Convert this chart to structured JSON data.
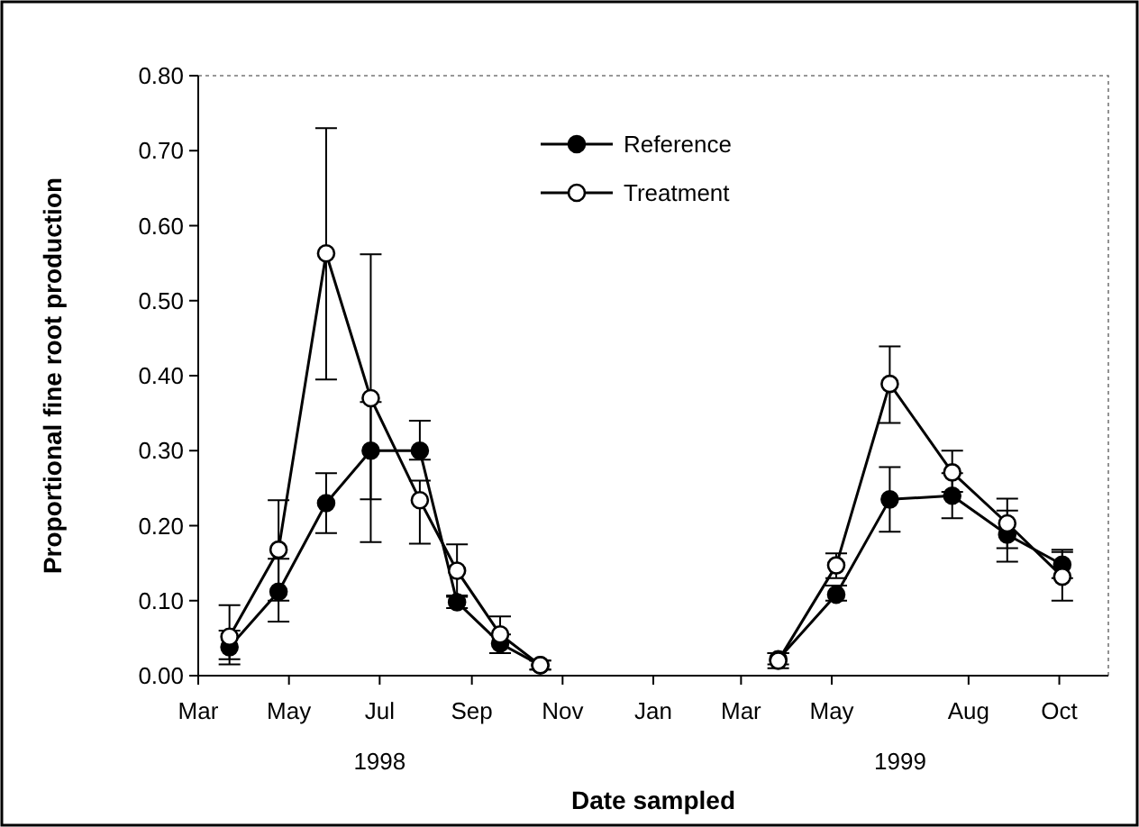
{
  "chart_data": {
    "type": "line",
    "xlabel": "Date sampled",
    "ylabel": "Proportional fine root production",
    "xlim": [
      "1998-03-01",
      "1999-11-03"
    ],
    "ylim": [
      0,
      0.8
    ],
    "xticks": [
      {
        "value": "1998-03-01",
        "label": "Mar"
      },
      {
        "value": "1998-05-01",
        "label": "May"
      },
      {
        "value": "1998-07-01",
        "label": "Jul"
      },
      {
        "value": "1998-09-01",
        "label": "Sep"
      },
      {
        "value": "1998-11-01",
        "label": "Nov"
      },
      {
        "value": "1999-01-01",
        "label": "Jan"
      },
      {
        "value": "1999-03-01",
        "label": "Mar"
      },
      {
        "value": "1999-05-01",
        "label": "May"
      },
      {
        "value": "1999-08-01",
        "label": "Aug"
      },
      {
        "value": "1999-10-01",
        "label": "Oct"
      }
    ],
    "yticks": [
      {
        "value": 0,
        "label": "0.00"
      },
      {
        "value": 0.1,
        "label": "0.10"
      },
      {
        "value": 0.2,
        "label": "0.20"
      },
      {
        "value": 0.3,
        "label": "0.30"
      },
      {
        "value": 0.4,
        "label": "0.40"
      },
      {
        "value": 0.5,
        "label": "0.50"
      },
      {
        "value": 0.6,
        "label": "0.60"
      },
      {
        "value": 0.7,
        "label": "0.70"
      },
      {
        "value": 0.8,
        "label": "0.80"
      }
    ],
    "annotations": [
      "1998",
      "1999"
    ],
    "legend": "top",
    "grid": false,
    "marker": "circle",
    "line_style": "solid",
    "x": [
      "1998-03-22",
      "1998-04-24",
      "1998-05-26",
      "1998-06-25",
      "1998-07-28",
      "1998-08-22",
      "1998-09-20",
      "1998-10-17",
      "1999-01-01",
      "1999-03-26",
      "1999-05-04",
      "1999-06-09",
      "1999-07-21",
      "1999-08-27",
      "1999-10-03"
    ],
    "series": [
      {
        "name": "Reference",
        "color": "#000000",
        "values": [
          0.038,
          0.112,
          0.23,
          0.3,
          0.3,
          0.098,
          0.043,
          0.014,
          null,
          0.022,
          0.108,
          0.235,
          0.24,
          0.188,
          0.148
        ],
        "errors": [
          [
            0.015,
            0.06
          ],
          [
            0.072,
            0.156
          ],
          [
            0.19,
            0.27
          ],
          [
            0.235,
            0.365
          ],
          [
            0.288,
            0.34
          ],
          [
            0.09,
            0.107
          ],
          [
            0.03,
            0.055
          ],
          [
            0.008,
            0.02
          ],
          null,
          [
            0.015,
            0.03
          ],
          [
            0.1,
            0.12
          ],
          [
            0.192,
            0.278
          ],
          [
            0.21,
            0.27
          ],
          [
            0.152,
            0.22
          ],
          [
            0.13,
            0.168
          ]
        ]
      },
      {
        "name": "Treatment",
        "color": "#000000",
        "values": [
          0.052,
          0.168,
          0.563,
          0.37,
          0.234,
          0.14,
          0.055,
          0.014,
          null,
          0.02,
          0.147,
          0.389,
          0.271,
          0.203,
          0.132
        ],
        "errors": [
          [
            0.022,
            0.094
          ],
          [
            0.1,
            0.234
          ],
          [
            0.395,
            0.73
          ],
          [
            0.178,
            0.562
          ],
          [
            0.176,
            0.26
          ],
          [
            0.105,
            0.175
          ],
          [
            0.03,
            0.079
          ],
          [
            0.008,
            0.02
          ],
          null,
          [
            0.01,
            0.03
          ],
          [
            0.13,
            0.163
          ],
          [
            0.337,
            0.439
          ],
          [
            0.245,
            0.3
          ],
          [
            0.17,
            0.236
          ],
          [
            0.1,
            0.165
          ]
        ]
      }
    ]
  }
}
